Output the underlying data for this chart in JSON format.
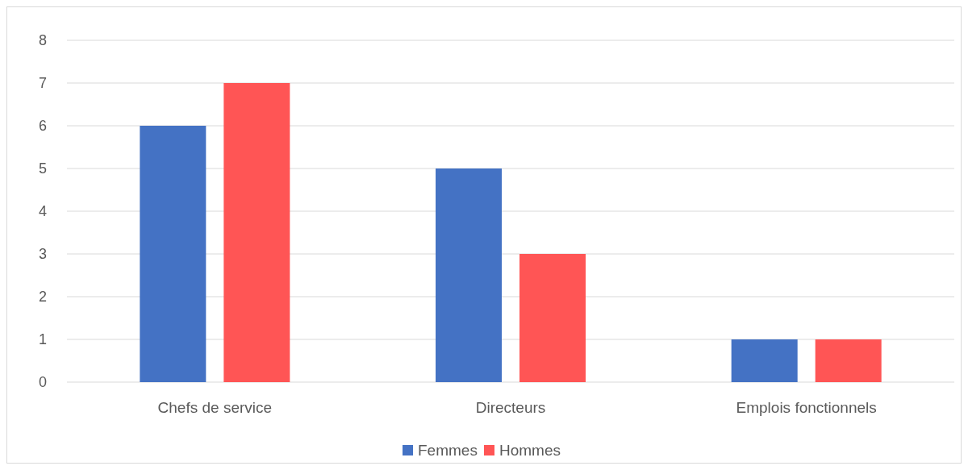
{
  "chart_data": {
    "type": "bar",
    "categories": [
      "Chefs de service",
      "Directeurs",
      "Emplois fonctionnels"
    ],
    "series": [
      {
        "name": "Femmes",
        "color": "#4472c4",
        "values": [
          6,
          5,
          1
        ]
      },
      {
        "name": "Hommes",
        "color": "#ff5555",
        "values": [
          7,
          3,
          1
        ]
      }
    ],
    "ylim": [
      0,
      8
    ],
    "yticks": [
      0,
      1,
      2,
      3,
      4,
      5,
      6,
      7,
      8
    ],
    "grid": "y",
    "legend": "bottom"
  }
}
